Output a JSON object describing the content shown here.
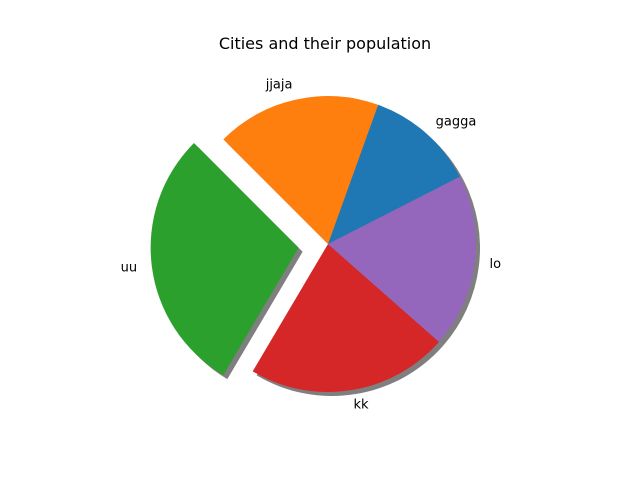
{
  "chart_data": {
    "type": "pie",
    "title": "Cities and their population",
    "labels": [
      "gagga",
      "jjaja",
      "uu",
      "kk",
      "lo"
    ],
    "values": [
      12,
      18,
      29,
      22,
      19
    ],
    "colors": [
      "#1f77b4",
      "#ff7f0e",
      "#2ca02c",
      "#d62728",
      "#9467bd"
    ],
    "explode": [
      0,
      0,
      0.2,
      0,
      0
    ],
    "shadow": true,
    "start_angle_deg": 27,
    "direction": "counterclockwise"
  }
}
